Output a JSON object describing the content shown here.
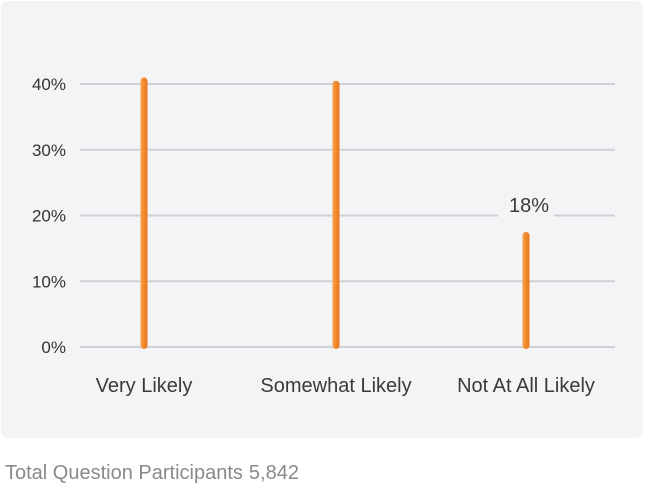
{
  "chart_data": {
    "type": "bar",
    "categories": [
      "Very Likely",
      "Somewhat Likely",
      "Not At All Likely"
    ],
    "values": [
      41,
      40.5,
      17.5
    ],
    "data_labels": [
      "",
      "",
      "18%"
    ],
    "yticks": [
      "0%",
      "10%",
      "20%",
      "30%",
      "40%"
    ],
    "ylim": [
      0,
      40
    ],
    "grid": true,
    "bar_color": "#f28a2e"
  },
  "footer": {
    "label": "Total Question Participants",
    "count": "5,842"
  }
}
